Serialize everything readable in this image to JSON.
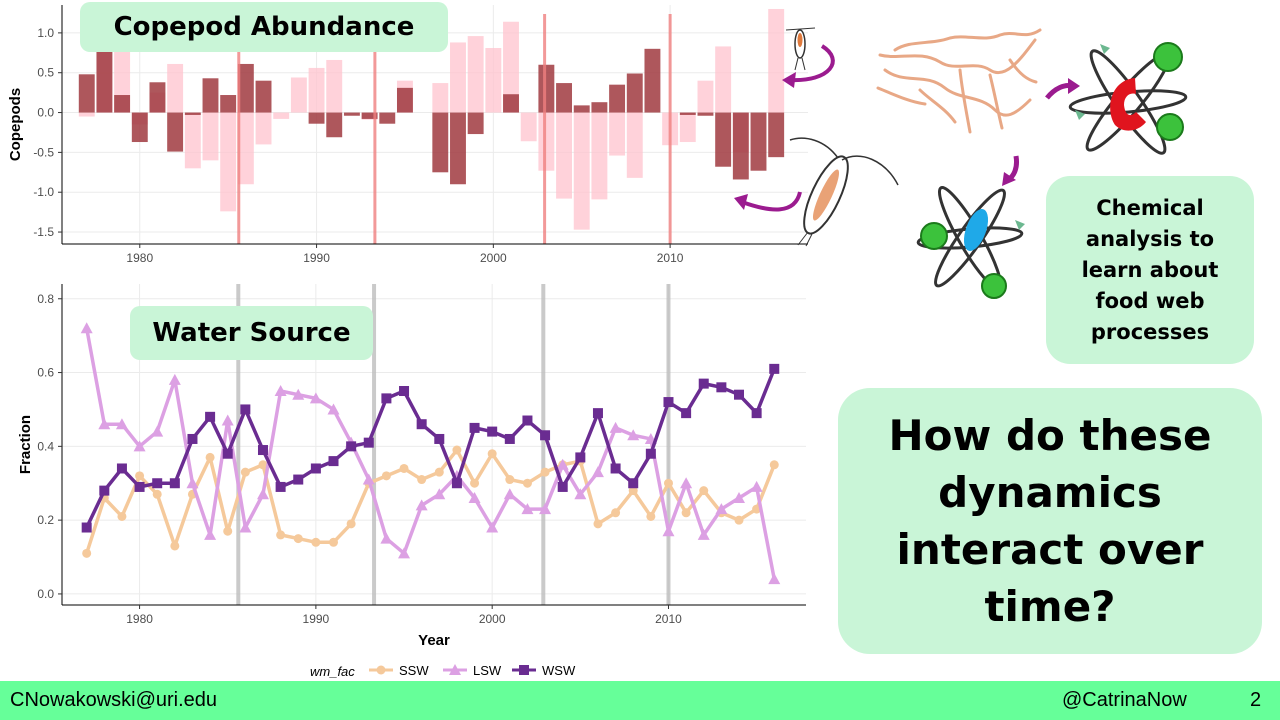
{
  "slide": {
    "copepod_title": "Copepod Abundance",
    "water_title": "Water Source",
    "chem_text": "Chemical analysis to learn about food web processes",
    "question": "How do these dynamics interact over time?",
    "footer_email": "CNowakowski@uri.edu",
    "footer_handle": "@CatrinaNow",
    "page_number": "2"
  },
  "illustrations": [
    "copepod-icon",
    "large-copepod-icon",
    "phytoplankton-icon",
    "food-web-icon",
    "arrow-icon"
  ],
  "colors": {
    "bar_dark": "#a0393f",
    "bar_light": "#ffc3ce",
    "regime_line_top": "#f08080",
    "regime_line_bottom": "#bdbdbd",
    "SSW": "#f5c99b",
    "LSW": "#dca0e3",
    "WSW": "#6a2c91",
    "label_box": "#c9f5d7",
    "footer": "#66ff99"
  },
  "chart_data": [
    {
      "type": "bar",
      "ylabel": "Copepods",
      "xlabel": "",
      "xlim": [
        1975.6,
        2017.8
      ],
      "ylim": [
        -1.65,
        1.35
      ],
      "x_ticks": [
        1980,
        1990,
        2000,
        2010
      ],
      "y_ticks": [
        -1.5,
        -1.0,
        -0.5,
        0.0,
        0.5,
        1.0
      ],
      "grid": true,
      "regime_lines": [
        1985.6,
        1993.3,
        2002.9,
        2010.0
      ],
      "series": [
        {
          "x": [
            1977,
            1978,
            1979,
            1980,
            1981,
            1982,
            1983,
            1984,
            1985,
            1986,
            1987,
            1988,
            1989,
            1990,
            1991,
            1992,
            1993,
            1994,
            1995,
            1996,
            1997,
            1998,
            1999,
            2000,
            2001,
            2002,
            2003,
            2004,
            2005,
            2006,
            2007,
            2008,
            2009,
            2010,
            2011,
            2012,
            2013,
            2014,
            2015,
            2016
          ],
          "values": [
            0.48,
            0.77,
            0.22,
            -0.37,
            0.38,
            -0.49,
            -0.03,
            0.43,
            0.22,
            0.61,
            0.4,
            0.0,
            0.0,
            -0.14,
            -0.31,
            -0.04,
            -0.08,
            -0.14,
            0.31,
            0.0,
            -0.75,
            -0.9,
            -0.27,
            0.0,
            0.23,
            0.0,
            0.6,
            0.37,
            0.09,
            0.13,
            0.35,
            0.49,
            0.8,
            0.0,
            -0.03,
            -0.04,
            -0.68,
            -0.84,
            -0.73,
            -0.56
          ]
        },
        {
          "x": [
            1977,
            1978,
            1979,
            1980,
            1981,
            1982,
            1983,
            1984,
            1985,
            1986,
            1987,
            1988,
            1989,
            1990,
            1991,
            1992,
            1993,
            1994,
            1995,
            1996,
            1997,
            1998,
            1999,
            2000,
            2001,
            2002,
            2003,
            2004,
            2005,
            2006,
            2007,
            2008,
            2009,
            2010,
            2011,
            2012,
            2013,
            2014,
            2015,
            2016
          ],
          "values": [
            -0.05,
            0.88,
            0.88,
            -0.15,
            0.25,
            0.61,
            -0.7,
            -0.6,
            -1.24,
            -0.9,
            -0.4,
            -0.08,
            0.44,
            0.56,
            0.66,
            0.0,
            -0.09,
            0.0,
            0.4,
            0.0,
            0.37,
            0.88,
            0.96,
            0.81,
            1.14,
            -0.36,
            -0.73,
            -1.08,
            -1.47,
            -1.09,
            -0.54,
            -0.82,
            0.0,
            -0.41,
            -0.37,
            0.4,
            0.83,
            -0.5,
            0.0,
            1.3
          ]
        }
      ]
    },
    {
      "type": "line",
      "xlabel": "Year",
      "ylabel": "Fraction",
      "xlim": [
        1975.6,
        2017.8
      ],
      "ylim": [
        -0.03,
        0.84
      ],
      "x_ticks": [
        1980,
        1990,
        2000,
        2010
      ],
      "y_ticks": [
        0.0,
        0.2,
        0.4,
        0.6,
        0.8
      ],
      "grid": true,
      "regime_lines": [
        1985.6,
        1993.3,
        2002.9,
        2010.0
      ],
      "legend_title": "wm_fac",
      "legend_position": "bottom",
      "x": [
        1977,
        1978,
        1979,
        1980,
        1981,
        1982,
        1983,
        1984,
        1985,
        1986,
        1987,
        1988,
        1989,
        1990,
        1991,
        1992,
        1993,
        1994,
        1995,
        1996,
        1997,
        1998,
        1999,
        2000,
        2001,
        2002,
        2003,
        2004,
        2005,
        2006,
        2007,
        2008,
        2009,
        2010,
        2011,
        2012,
        2013,
        2014,
        2015,
        2016
      ],
      "series": [
        {
          "name": "SSW",
          "marker": "circle",
          "values": [
            0.11,
            0.26,
            0.21,
            0.32,
            0.27,
            0.13,
            0.27,
            0.37,
            0.17,
            0.33,
            0.35,
            0.16,
            0.15,
            0.14,
            0.14,
            0.19,
            0.3,
            0.32,
            0.34,
            0.31,
            0.33,
            0.39,
            0.3,
            0.38,
            0.31,
            0.3,
            0.33,
            0.35,
            0.36,
            0.19,
            0.22,
            0.28,
            0.21,
            0.3,
            0.22,
            0.28,
            0.22,
            0.2,
            0.23,
            0.35
          ]
        },
        {
          "name": "LSW",
          "marker": "triangle",
          "values": [
            0.72,
            0.46,
            0.46,
            0.4,
            0.44,
            0.58,
            0.3,
            0.16,
            0.47,
            0.18,
            0.27,
            0.55,
            0.54,
            0.53,
            0.5,
            0.41,
            0.31,
            0.15,
            0.11,
            0.24,
            0.27,
            0.32,
            0.26,
            0.18,
            0.27,
            0.23,
            0.23,
            0.35,
            0.27,
            0.33,
            0.45,
            0.43,
            0.42,
            0.17,
            0.3,
            0.16,
            0.23,
            0.26,
            0.29,
            0.04
          ]
        },
        {
          "name": "WSW",
          "marker": "square",
          "values": [
            0.18,
            0.28,
            0.34,
            0.29,
            0.3,
            0.3,
            0.42,
            0.48,
            0.38,
            0.5,
            0.39,
            0.29,
            0.31,
            0.34,
            0.36,
            0.4,
            0.41,
            0.53,
            0.55,
            0.46,
            0.42,
            0.3,
            0.45,
            0.44,
            0.42,
            0.47,
            0.43,
            0.29,
            0.37,
            0.49,
            0.34,
            0.3,
            0.38,
            0.52,
            0.49,
            0.57,
            0.56,
            0.54,
            0.49,
            0.61
          ]
        }
      ]
    }
  ]
}
